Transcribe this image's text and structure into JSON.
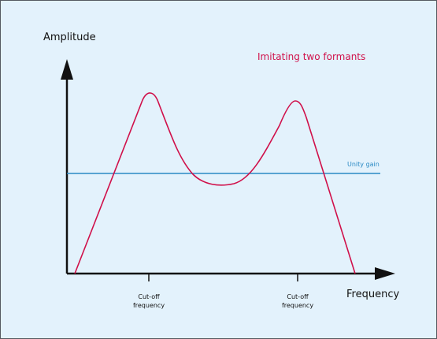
{
  "y_axis_label": "Amplitude",
  "x_axis_label": "Frequency",
  "title": "Imitating two formants",
  "unity_gain_label": "Unity gain",
  "cutoff_labels": [
    {
      "line1": "Cut-off",
      "line2": "frequency"
    },
    {
      "line1": "Cut-off",
      "line2": "frequency"
    }
  ],
  "colors": {
    "background": "#e3f2fc",
    "axes": "#111111",
    "curve": "#d0104a",
    "unity_line": "#2a8ac4",
    "title_text": "#d0104a",
    "unity_text": "#2a8ac4"
  }
}
